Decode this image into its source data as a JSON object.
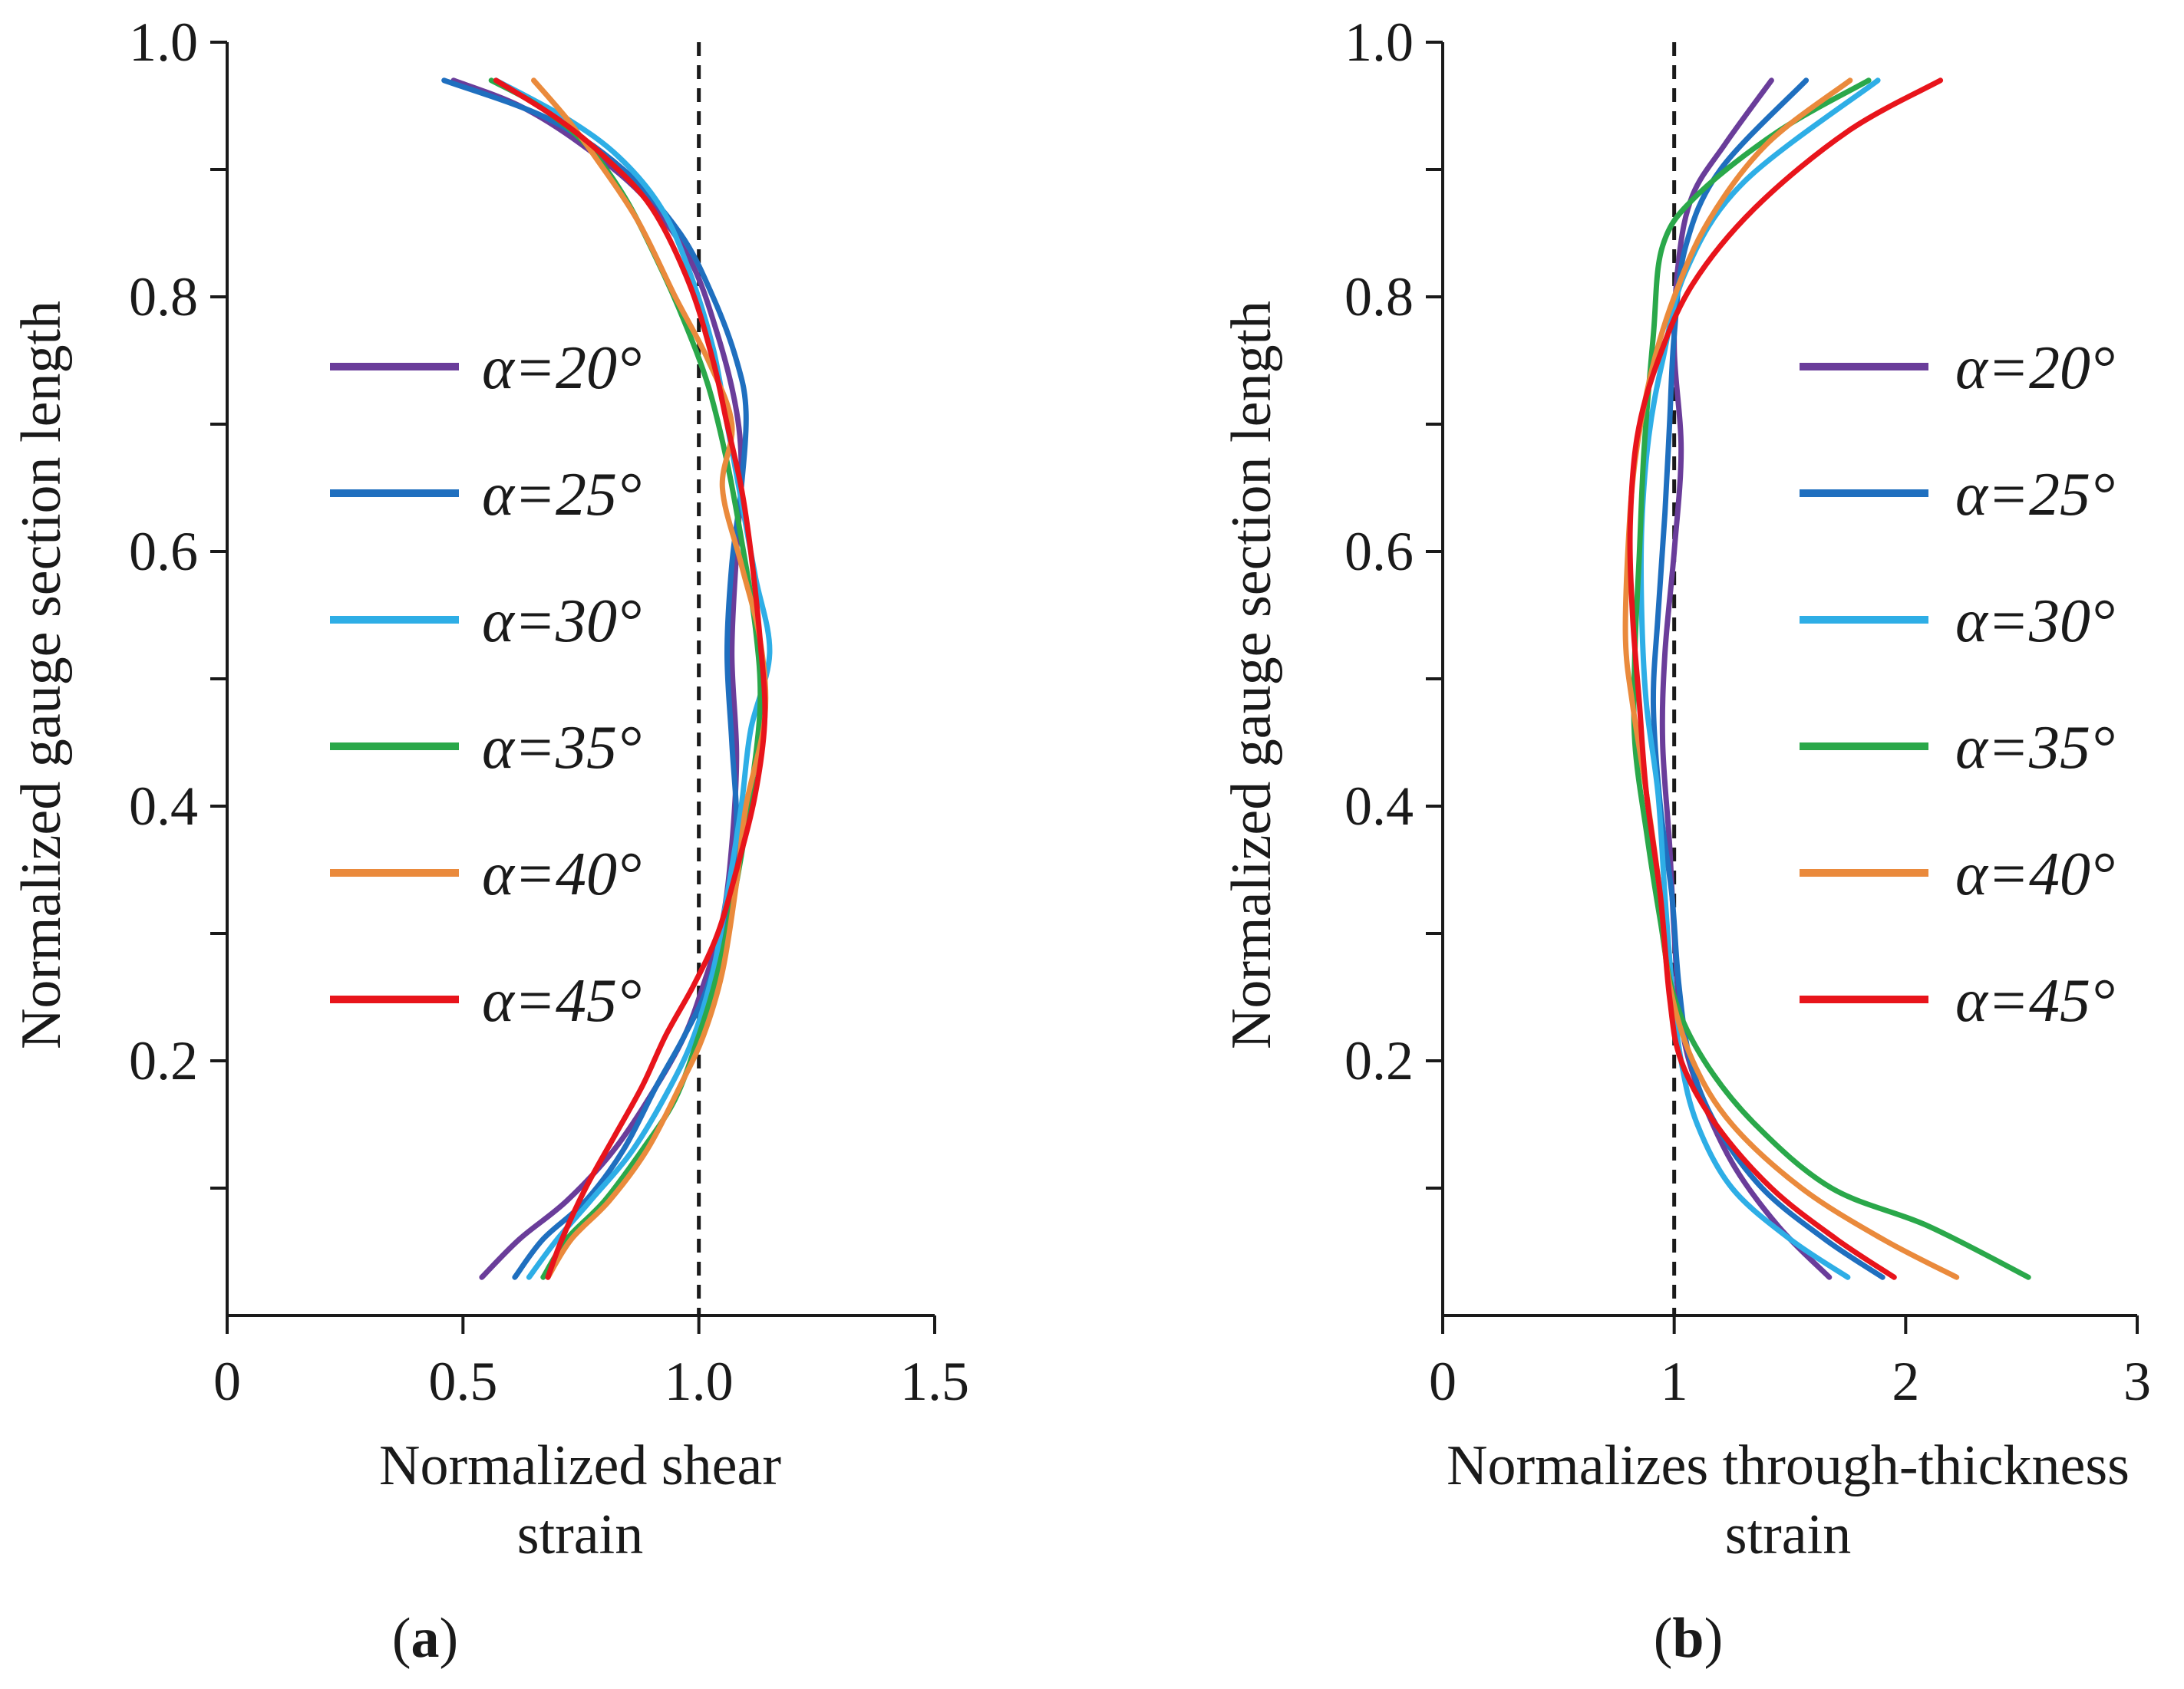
{
  "colors": {
    "a20": "#6a3d9a",
    "a25": "#1f6fbf",
    "a30": "#2eaee6",
    "a35": "#2aa84a",
    "a40": "#ea8a3c",
    "a45": "#e8141b",
    "axis": "#1a1a1a"
  },
  "chart_data": [
    {
      "panel": "a",
      "type": "line",
      "xlabel_line1": "Normalized shear",
      "xlabel_line2": "strain",
      "ylabel": "Normalized gauge section length",
      "xlim": [
        0,
        1.5
      ],
      "ylim": [
        0,
        1.0
      ],
      "x_ticks": [
        0,
        0.5,
        1.0,
        1.5
      ],
      "x_tick_labels": [
        "0",
        "0.5",
        "1.0",
        "1.5"
      ],
      "y_ticks": [
        0.2,
        0.4,
        0.6,
        0.8,
        1.0
      ],
      "y_tick_labels": [
        "0.2",
        "0.4",
        "0.6",
        "0.8",
        "1.0"
      ],
      "y_minor_ticks": [
        0.1,
        0.3,
        0.5,
        0.7,
        0.9
      ],
      "reference_line_x": 1.0,
      "legend_position": "center-left",
      "series": [
        {
          "name": "α=20°",
          "color_key": "a20",
          "points": [
            [
              0.54,
              0.03
            ],
            [
              0.62,
              0.06
            ],
            [
              0.72,
              0.09
            ],
            [
              0.82,
              0.13
            ],
            [
              0.91,
              0.18
            ],
            [
              0.97,
              0.22
            ],
            [
              1.01,
              0.26
            ],
            [
              1.05,
              0.31
            ],
            [
              1.07,
              0.37
            ],
            [
              1.08,
              0.44
            ],
            [
              1.07,
              0.52
            ],
            [
              1.08,
              0.6
            ],
            [
              1.09,
              0.66
            ],
            [
              1.08,
              0.71
            ],
            [
              1.04,
              0.77
            ],
            [
              0.98,
              0.83
            ],
            [
              0.88,
              0.88
            ],
            [
              0.75,
              0.92
            ],
            [
              0.62,
              0.95
            ],
            [
              0.48,
              0.97
            ]
          ]
        },
        {
          "name": "α=25°",
          "color_key": "a25",
          "points": [
            [
              0.61,
              0.03
            ],
            [
              0.67,
              0.06
            ],
            [
              0.76,
              0.09
            ],
            [
              0.84,
              0.13
            ],
            [
              0.91,
              0.18
            ],
            [
              0.97,
              0.22
            ],
            [
              1.02,
              0.26
            ],
            [
              1.06,
              0.32
            ],
            [
              1.08,
              0.38
            ],
            [
              1.07,
              0.45
            ],
            [
              1.06,
              0.52
            ],
            [
              1.07,
              0.59
            ],
            [
              1.09,
              0.65
            ],
            [
              1.1,
              0.71
            ],
            [
              1.08,
              0.75
            ],
            [
              1.03,
              0.8
            ],
            [
              0.96,
              0.85
            ],
            [
              0.84,
              0.9
            ],
            [
              0.68,
              0.94
            ],
            [
              0.46,
              0.97
            ]
          ]
        },
        {
          "name": "α=30°",
          "color_key": "a30",
          "points": [
            [
              0.64,
              0.03
            ],
            [
              0.7,
              0.06
            ],
            [
              0.77,
              0.09
            ],
            [
              0.86,
              0.13
            ],
            [
              0.94,
              0.18
            ],
            [
              0.99,
              0.22
            ],
            [
              1.03,
              0.27
            ],
            [
              1.06,
              0.33
            ],
            [
              1.09,
              0.4
            ],
            [
              1.11,
              0.46
            ],
            [
              1.15,
              0.52
            ],
            [
              1.12,
              0.58
            ],
            [
              1.09,
              0.64
            ],
            [
              1.06,
              0.7
            ],
            [
              1.03,
              0.76
            ],
            [
              0.98,
              0.82
            ],
            [
              0.92,
              0.87
            ],
            [
              0.83,
              0.91
            ],
            [
              0.72,
              0.94
            ],
            [
              0.57,
              0.97
            ]
          ]
        },
        {
          "name": "α=35°",
          "color_key": "a35",
          "points": [
            [
              0.67,
              0.03
            ],
            [
              0.72,
              0.06
            ],
            [
              0.8,
              0.09
            ],
            [
              0.88,
              0.13
            ],
            [
              0.95,
              0.17
            ],
            [
              1.0,
              0.22
            ],
            [
              1.04,
              0.27
            ],
            [
              1.08,
              0.34
            ],
            [
              1.11,
              0.41
            ],
            [
              1.13,
              0.48
            ],
            [
              1.12,
              0.54
            ],
            [
              1.09,
              0.61
            ],
            [
              1.06,
              0.67
            ],
            [
              1.02,
              0.73
            ],
            [
              0.97,
              0.78
            ],
            [
              0.91,
              0.83
            ],
            [
              0.84,
              0.88
            ],
            [
              0.76,
              0.92
            ],
            [
              0.66,
              0.95
            ],
            [
              0.56,
              0.97
            ]
          ]
        },
        {
          "name": "α=40°",
          "color_key": "a40",
          "points": [
            [
              0.68,
              0.03
            ],
            [
              0.73,
              0.06
            ],
            [
              0.81,
              0.09
            ],
            [
              0.89,
              0.13
            ],
            [
              0.96,
              0.18
            ],
            [
              1.01,
              0.22
            ],
            [
              1.05,
              0.27
            ],
            [
              1.08,
              0.34
            ],
            [
              1.1,
              0.4
            ],
            [
              1.14,
              0.47
            ],
            [
              1.13,
              0.53
            ],
            [
              1.09,
              0.59
            ],
            [
              1.05,
              0.65
            ],
            [
              1.07,
              0.7
            ],
            [
              1.02,
              0.75
            ],
            [
              0.95,
              0.8
            ],
            [
              0.87,
              0.86
            ],
            [
              0.78,
              0.91
            ],
            [
              0.72,
              0.94
            ],
            [
              0.65,
              0.97
            ]
          ]
        },
        {
          "name": "α=45°",
          "color_key": "a45",
          "points": [
            [
              0.68,
              0.03
            ],
            [
              0.71,
              0.06
            ],
            [
              0.76,
              0.1
            ],
            [
              0.82,
              0.14
            ],
            [
              0.88,
              0.18
            ],
            [
              0.93,
              0.22
            ],
            [
              0.99,
              0.26
            ],
            [
              1.04,
              0.3
            ],
            [
              1.08,
              0.35
            ],
            [
              1.12,
              0.41
            ],
            [
              1.14,
              0.47
            ],
            [
              1.13,
              0.53
            ],
            [
              1.11,
              0.6
            ],
            [
              1.09,
              0.65
            ],
            [
              1.06,
              0.7
            ],
            [
              1.03,
              0.75
            ],
            [
              0.98,
              0.81
            ],
            [
              0.9,
              0.87
            ],
            [
              0.8,
              0.91
            ],
            [
              0.7,
              0.94
            ],
            [
              0.57,
              0.97
            ]
          ]
        }
      ]
    },
    {
      "panel": "b",
      "type": "line",
      "xlabel_line1": "Normalizes through-thickness",
      "xlabel_line2": "strain",
      "ylabel": "Normalized gauge section length",
      "xlim": [
        0,
        3
      ],
      "ylim": [
        0,
        1.0
      ],
      "x_ticks": [
        0,
        1,
        2,
        3
      ],
      "x_tick_labels": [
        "0",
        "1",
        "2",
        "3"
      ],
      "y_ticks": [
        0.2,
        0.4,
        0.6,
        0.8,
        1.0
      ],
      "y_tick_labels": [
        "0.2",
        "0.4",
        "0.6",
        "0.8",
        "1.0"
      ],
      "y_minor_ticks": [
        0.1,
        0.3,
        0.5,
        0.7,
        0.9
      ],
      "reference_line_x": 1,
      "legend_position": "center-right",
      "series": [
        {
          "name": "α=20°",
          "color_key": "a20",
          "points": [
            [
              1.67,
              0.03
            ],
            [
              1.45,
              0.07
            ],
            [
              1.25,
              0.12
            ],
            [
              1.1,
              0.18
            ],
            [
              1.03,
              0.23
            ],
            [
              1.0,
              0.3
            ],
            [
              0.98,
              0.37
            ],
            [
              0.95,
              0.45
            ],
            [
              0.96,
              0.52
            ],
            [
              1.0,
              0.6
            ],
            [
              1.03,
              0.68
            ],
            [
              1.0,
              0.76
            ],
            [
              1.02,
              0.83
            ],
            [
              1.08,
              0.88
            ],
            [
              1.22,
              0.92
            ],
            [
              1.42,
              0.97
            ]
          ]
        },
        {
          "name": "α=25°",
          "color_key": "a25",
          "points": [
            [
              1.9,
              0.03
            ],
            [
              1.65,
              0.06
            ],
            [
              1.38,
              0.1
            ],
            [
              1.18,
              0.15
            ],
            [
              1.07,
              0.2
            ],
            [
              1.02,
              0.26
            ],
            [
              0.99,
              0.33
            ],
            [
              0.94,
              0.4
            ],
            [
              0.91,
              0.48
            ],
            [
              0.93,
              0.55
            ],
            [
              0.96,
              0.63
            ],
            [
              0.98,
              0.7
            ],
            [
              1.0,
              0.77
            ],
            [
              1.05,
              0.84
            ],
            [
              1.2,
              0.9
            ],
            [
              1.57,
              0.97
            ]
          ]
        },
        {
          "name": "α=30°",
          "color_key": "a30",
          "points": [
            [
              1.75,
              0.03
            ],
            [
              1.5,
              0.06
            ],
            [
              1.25,
              0.1
            ],
            [
              1.1,
              0.15
            ],
            [
              1.03,
              0.2
            ],
            [
              0.99,
              0.26
            ],
            [
              0.96,
              0.33
            ],
            [
              0.93,
              0.41
            ],
            [
              0.88,
              0.48
            ],
            [
              0.86,
              0.55
            ],
            [
              0.86,
              0.62
            ],
            [
              0.89,
              0.69
            ],
            [
              0.95,
              0.75
            ],
            [
              1.05,
              0.82
            ],
            [
              1.3,
              0.89
            ],
            [
              1.88,
              0.97
            ]
          ]
        },
        {
          "name": "α=35°",
          "color_key": "a35",
          "points": [
            [
              2.53,
              0.03
            ],
            [
              2.1,
              0.07
            ],
            [
              1.68,
              0.1
            ],
            [
              1.35,
              0.15
            ],
            [
              1.13,
              0.2
            ],
            [
              1.0,
              0.25
            ],
            [
              0.94,
              0.31
            ],
            [
              0.88,
              0.38
            ],
            [
              0.83,
              0.45
            ],
            [
              0.83,
              0.52
            ],
            [
              0.85,
              0.6
            ],
            [
              0.87,
              0.68
            ],
            [
              0.91,
              0.77
            ],
            [
              0.95,
              0.84
            ],
            [
              1.1,
              0.88
            ],
            [
              1.45,
              0.93
            ],
            [
              1.84,
              0.97
            ]
          ]
        },
        {
          "name": "α=40°",
          "color_key": "a40",
          "points": [
            [
              2.22,
              0.03
            ],
            [
              1.9,
              0.06
            ],
            [
              1.55,
              0.1
            ],
            [
              1.25,
              0.15
            ],
            [
              1.08,
              0.2
            ],
            [
              0.98,
              0.26
            ],
            [
              0.94,
              0.33
            ],
            [
              0.88,
              0.41
            ],
            [
              0.82,
              0.48
            ],
            [
              0.79,
              0.53
            ],
            [
              0.8,
              0.6
            ],
            [
              0.83,
              0.67
            ],
            [
              0.9,
              0.74
            ],
            [
              1.0,
              0.8
            ],
            [
              1.15,
              0.86
            ],
            [
              1.4,
              0.92
            ],
            [
              1.76,
              0.97
            ]
          ]
        },
        {
          "name": "α=45°",
          "color_key": "a45",
          "points": [
            [
              1.95,
              0.03
            ],
            [
              1.7,
              0.06
            ],
            [
              1.42,
              0.1
            ],
            [
              1.18,
              0.15
            ],
            [
              1.03,
              0.2
            ],
            [
              0.98,
              0.25
            ],
            [
              0.94,
              0.33
            ],
            [
              0.88,
              0.41
            ],
            [
              0.85,
              0.48
            ],
            [
              0.82,
              0.55
            ],
            [
              0.81,
              0.62
            ],
            [
              0.84,
              0.69
            ],
            [
              0.93,
              0.75
            ],
            [
              1.08,
              0.81
            ],
            [
              1.35,
              0.87
            ],
            [
              1.75,
              0.93
            ],
            [
              2.15,
              0.97
            ]
          ]
        }
      ]
    }
  ],
  "panels": [
    {
      "label_open": "(",
      "label_letter": "a",
      "label_close": ")"
    },
    {
      "label_open": "(",
      "label_letter": "b",
      "label_close": ")"
    }
  ]
}
